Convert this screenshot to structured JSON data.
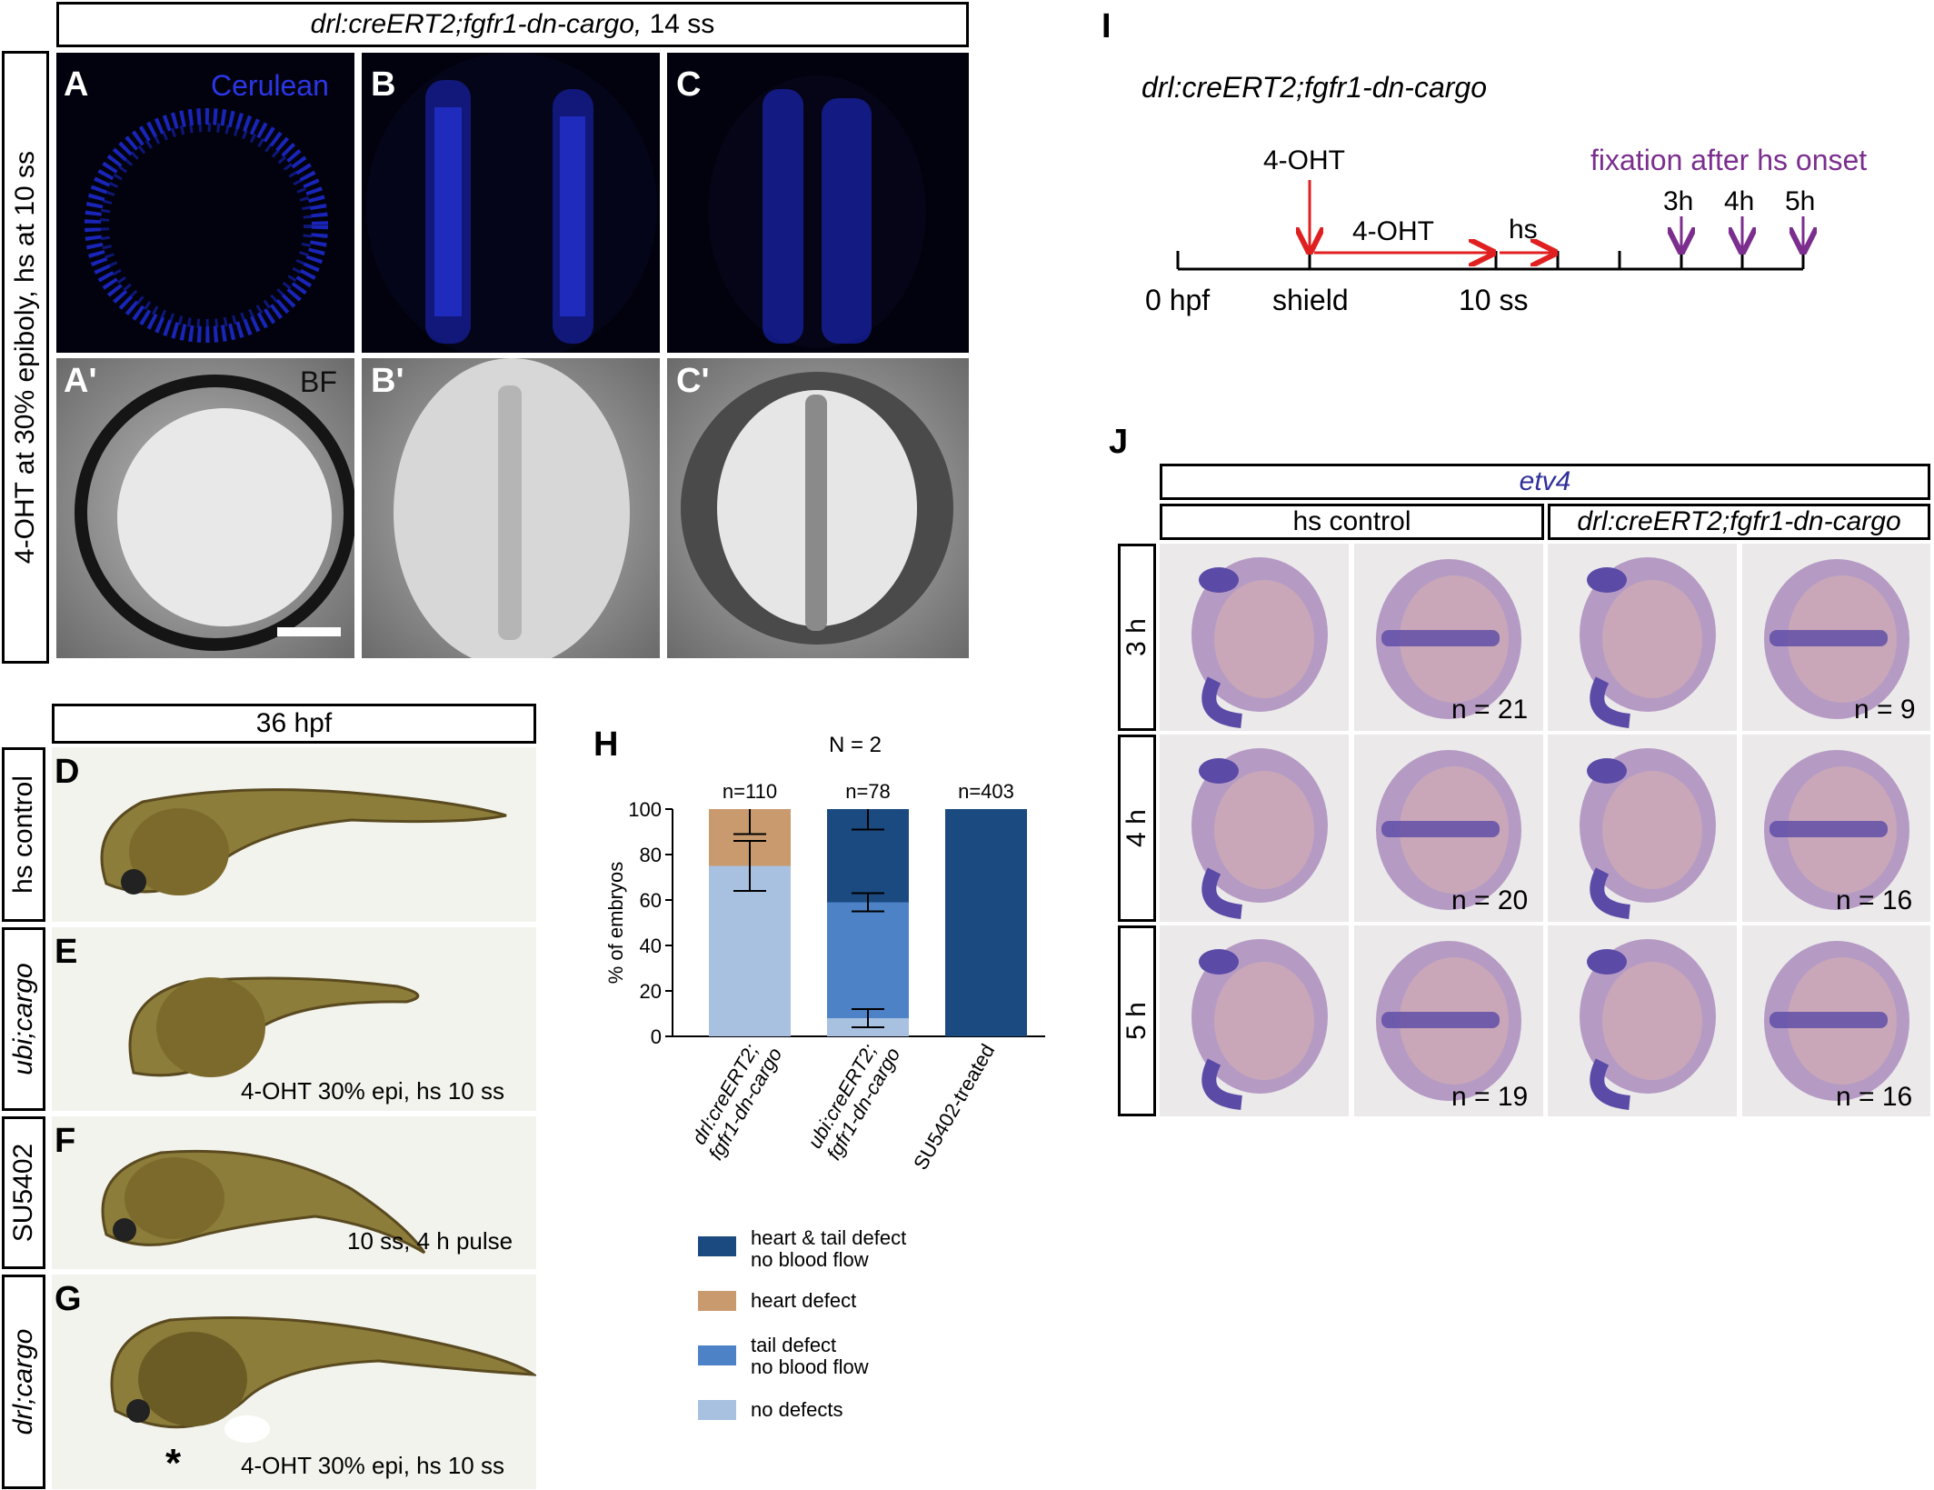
{
  "panel_top": {
    "header": "drl:creERT2;fgfr1-dn-cargo,",
    "header_suffix": " 14 ss",
    "side_label": "4-OHT at 30% epiboly, hs at 10 ss",
    "labels": [
      "A",
      "B",
      "C",
      "A'",
      "B'",
      "C'"
    ],
    "cerulean_label": "Cerulean",
    "bf_label": "BF"
  },
  "panel_d_g": {
    "header": "36 hpf",
    "rows": [
      {
        "letter": "D",
        "side": "hs control",
        "italic": false,
        "caption": ""
      },
      {
        "letter": "E",
        "side": "ubi;cargo",
        "italic": true,
        "caption": "4-OHT 30% epi, hs 10 ss"
      },
      {
        "letter": "F",
        "side": "SU5402",
        "italic": false,
        "caption": "10 ss, 4 h pulse"
      },
      {
        "letter": "G",
        "side": "drl;cargo",
        "italic": true,
        "caption": "4-OHT 30% epi, hs 10 ss"
      }
    ],
    "asterisk": "*"
  },
  "panel_h": {
    "letter": "H",
    "n_total": "N = 2",
    "ylabel": "% of embryos",
    "bar_ns": [
      "n=110",
      "n=78",
      "n=403"
    ],
    "x_labels": [
      [
        "drl:creERT2;",
        "fgfr1-dn-cargo"
      ],
      [
        "ubi:creERT2;",
        "fgfr1-dn-cargo"
      ],
      [
        "SU5402-treated"
      ]
    ],
    "legend": [
      {
        "lines": [
          "heart & tail defect",
          "no blood flow"
        ],
        "color": "#1b4a80"
      },
      {
        "lines": [
          "heart defect"
        ],
        "color": "#c99a6e"
      },
      {
        "lines": [
          "tail defect",
          "no blood flow"
        ],
        "color": "#4d82c6"
      },
      {
        "lines": [
          "no defects"
        ],
        "color": "#a8c1e1"
      }
    ]
  },
  "chart_data": {
    "type": "bar",
    "stacked": true,
    "categories": [
      "drl:creERT2; fgfr1-dn-cargo",
      "ubi:creERT2; fgfr1-dn-cargo",
      "SU5402-treated"
    ],
    "series": [
      {
        "name": "no defects",
        "values": [
          75,
          8,
          0
        ],
        "error": [
          11,
          4,
          0
        ],
        "color": "#a8c1e1"
      },
      {
        "name": "tail defect no blood flow",
        "values": [
          0,
          51,
          0
        ],
        "error": [
          0,
          4,
          0
        ],
        "color": "#4d82c6"
      },
      {
        "name": "heart defect",
        "values": [
          25,
          0,
          0
        ],
        "error": [
          11,
          0,
          0
        ],
        "color": "#c99a6e"
      },
      {
        "name": "heart & tail defect no blood flow",
        "values": [
          0,
          41,
          100
        ],
        "error": [
          0,
          9,
          0
        ],
        "color": "#1b4a80"
      }
    ],
    "ylabel": "% of embryos",
    "ylim": [
      0,
      100
    ],
    "yticks": [
      0,
      20,
      40,
      60,
      80,
      100
    ],
    "n_labels": [
      "n=110",
      "n=78",
      "n=403"
    ],
    "legend_position": "bottom"
  },
  "panel_i": {
    "letter": "I",
    "genotype": "drl:creERT2;fgfr1-dn-cargo",
    "ohtop": "4-OHT",
    "ohtmid": "4-OHT",
    "hs": "hs",
    "fixation": "fixation after hs onset",
    "times": [
      "3h",
      "4h",
      "5h"
    ],
    "axis": [
      "0 hpf",
      "shield",
      "10 ss"
    ],
    "red": "#e02020",
    "purple": "#7b2e8e"
  },
  "panel_j": {
    "letter": "J",
    "gene": "etv4",
    "cond_left": "hs control",
    "cond_right": "drl:creERT2;fgfr1-dn-cargo",
    "rows": [
      {
        "time": "3 h",
        "n_left": "n = 21",
        "n_right": "n = 9"
      },
      {
        "time": "4 h",
        "n_left": "n = 20",
        "n_right": "n = 16"
      },
      {
        "time": "5 h",
        "n_left": "n = 19",
        "n_right": "n = 16"
      }
    ]
  }
}
